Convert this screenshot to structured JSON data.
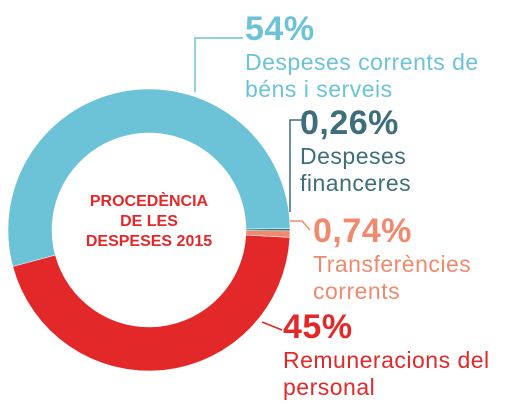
{
  "chart_data": {
    "type": "donut",
    "title": "PROCEDÈNCIA DE LES DESPESES 2015",
    "categories": [
      "Despeses corrents de béns i serveis",
      "Despeses financeres",
      "Transferències corrents",
      "Remuneracions del personal"
    ],
    "values": [
      54,
      0.26,
      0.74,
      45
    ],
    "value_labels": [
      "54%",
      "0,26%",
      "0,74%",
      "45%"
    ],
    "colors": [
      "#6cc3d8",
      "#3d6e7a",
      "#f08a6e",
      "#e3282a"
    ]
  }
}
